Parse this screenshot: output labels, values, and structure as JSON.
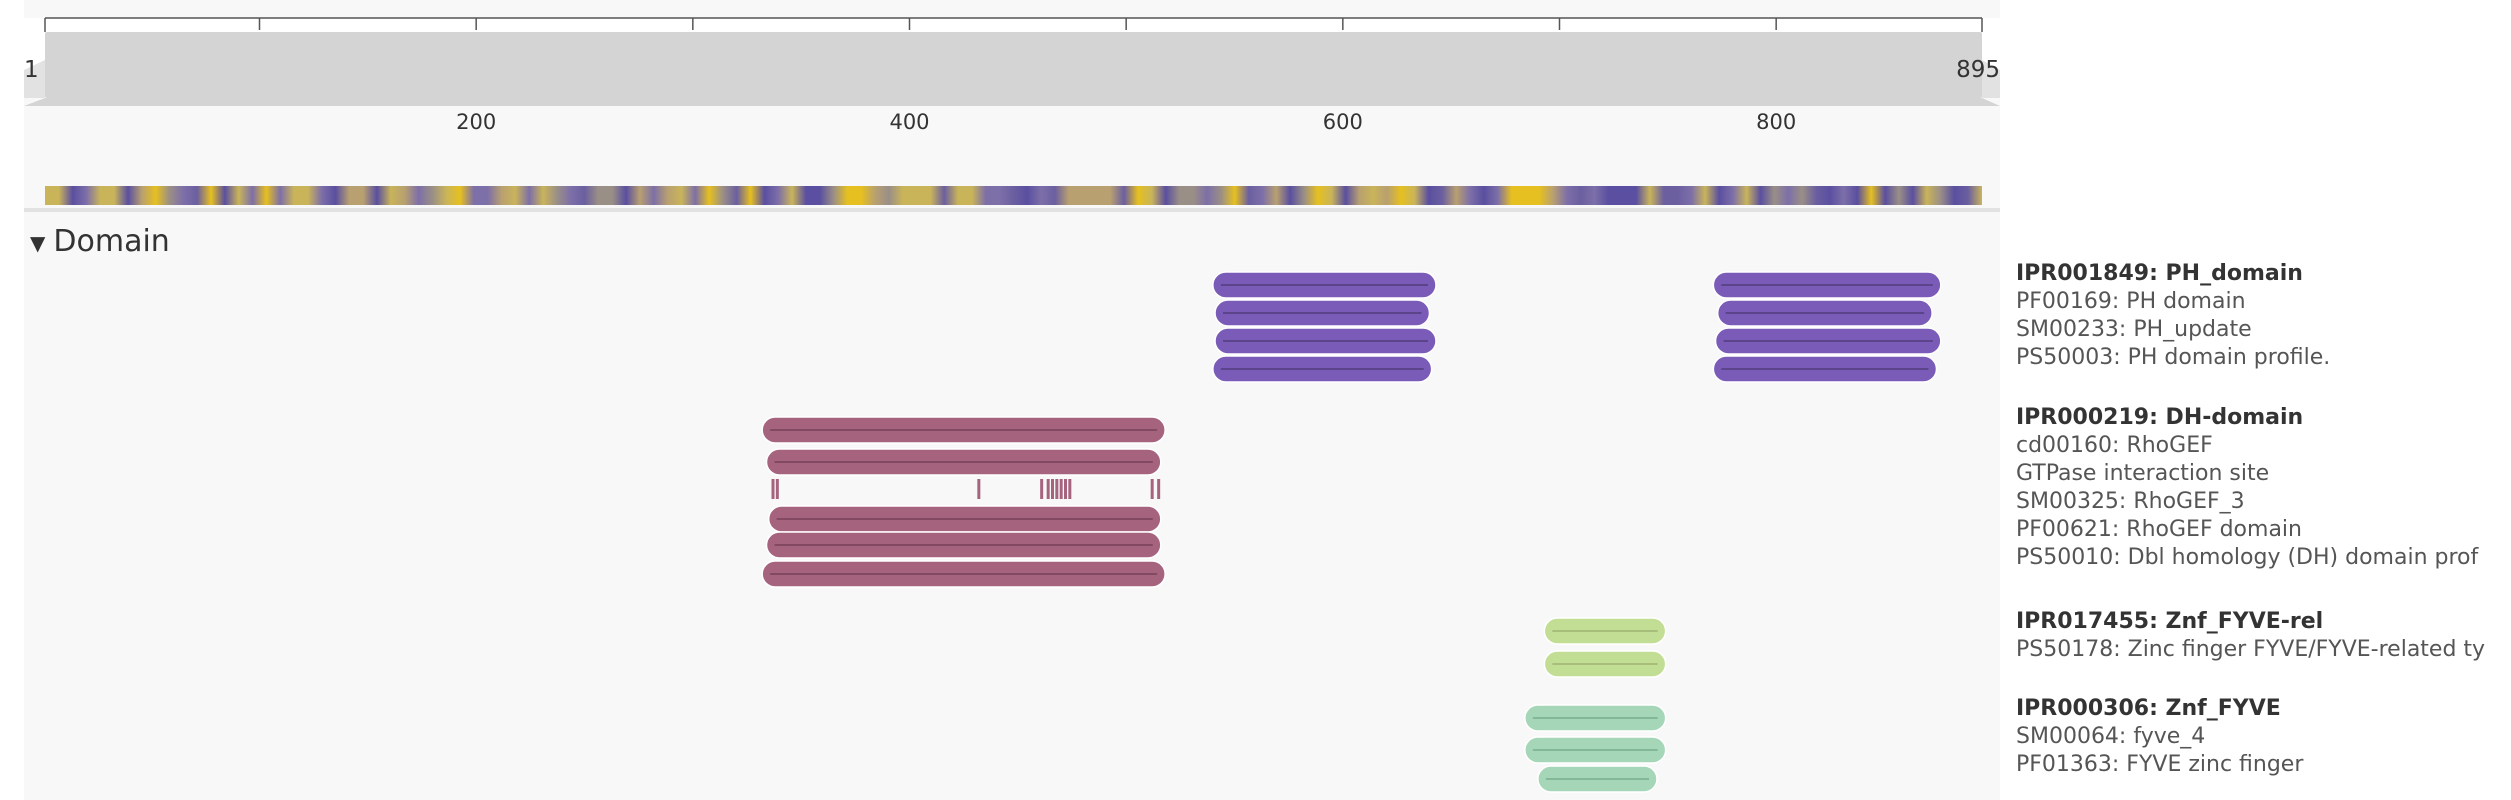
{
  "sequence": {
    "start_label": "1",
    "end_label": "895",
    "top_ticks": [
      "100",
      "200",
      "300",
      "400",
      "500",
      "600",
      "700",
      "800"
    ],
    "zoom_ticks": [
      "200",
      "400",
      "600",
      "800"
    ]
  },
  "section": {
    "title": "Domain",
    "expanded": true
  },
  "entries": [
    {
      "head": "IPR001849: PH_domain",
      "lines": [
        "PF00169: PH domain",
        "SM00233: PH_update",
        "PS50003: PH domain profile."
      ]
    },
    {
      "head": "IPR000219: DH-domain",
      "lines": [
        "cd00160: RhoGEF",
        "GTPase interaction site",
        "SM00325: RhoGEF_3",
        "PF00621: RhoGEF domain",
        "PS50010: Dbl homology (DH) domain prof"
      ]
    },
    {
      "head": "IPR017455: Znf_FYVE-rel",
      "lines": [
        "PS50178: Zinc finger FYVE/FYVE-related ty"
      ]
    },
    {
      "head": "IPR000306: Znf_FYVE",
      "lines": [
        "SM00064: fyve_4",
        "PF01363: FYVE zinc finger"
      ]
    }
  ],
  "tracks": {
    "ph_domain": {
      "color": "#7a5cb8",
      "bars": [
        {
          "start": 540,
          "end": 643
        },
        {
          "start": 541,
          "end": 640
        },
        {
          "start": 541,
          "end": 643
        },
        {
          "start": 540,
          "end": 641
        },
        {
          "start": 771,
          "end": 876
        },
        {
          "start": 773,
          "end": 872
        },
        {
          "start": 772,
          "end": 876
        },
        {
          "start": 771,
          "end": 874
        }
      ]
    },
    "dh_domain": {
      "color": "#a6637e",
      "bars": [
        {
          "start": 332,
          "end": 518
        },
        {
          "start": 334,
          "end": 516
        },
        {
          "start": 335,
          "end": 516
        },
        {
          "start": 334,
          "end": 516
        },
        {
          "start": 332,
          "end": 518
        }
      ],
      "site_residues": [
        337,
        339,
        432,
        461,
        464,
        466,
        468,
        470,
        472,
        474,
        512,
        515
      ]
    },
    "znf_fyve_rel": {
      "color": "#c2dd94",
      "bars": [
        {
          "start": 693,
          "end": 749
        },
        {
          "start": 693,
          "end": 749
        }
      ]
    },
    "znf_fyve": {
      "color": "#a6d6b8",
      "bars": [
        {
          "start": 684,
          "end": 749
        },
        {
          "start": 684,
          "end": 749
        },
        {
          "start": 690,
          "end": 745
        }
      ]
    }
  }
}
